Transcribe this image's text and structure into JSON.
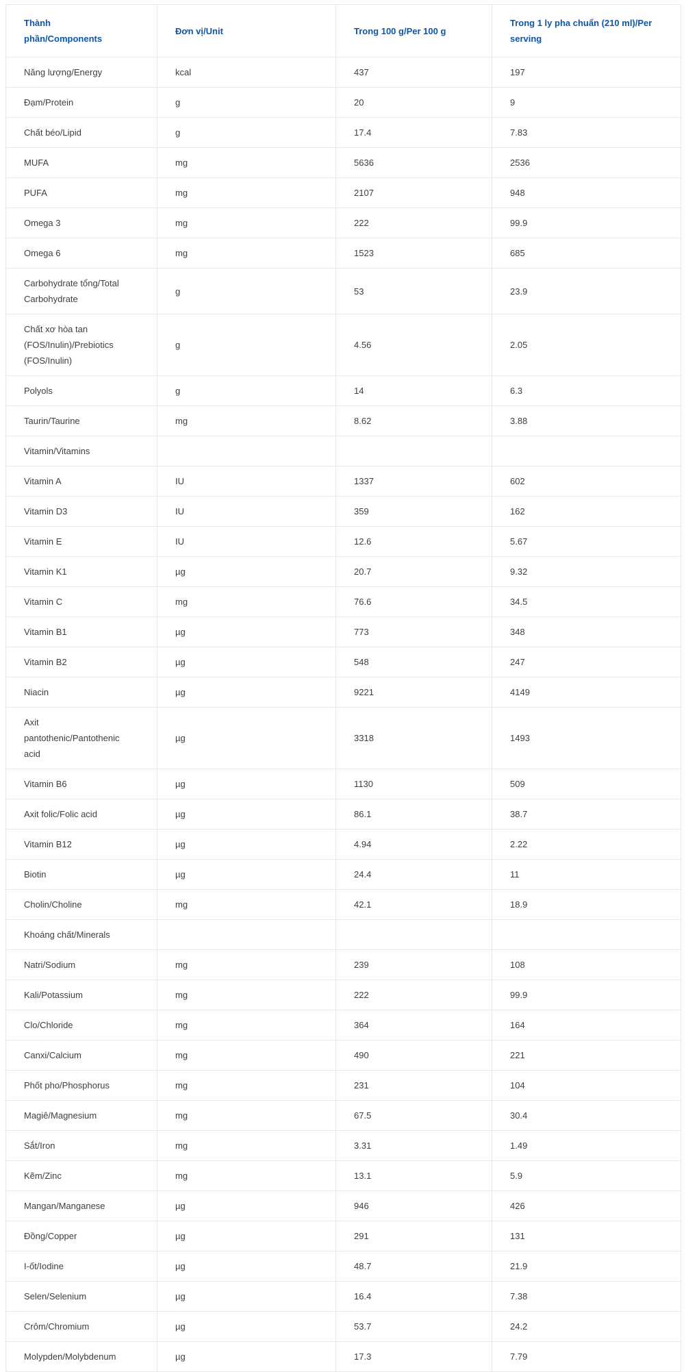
{
  "colors": {
    "header_text": "#0d57a8",
    "body_text": "#3e3e3e",
    "border": "#e7e7e7"
  },
  "table": {
    "headers": [
      "Thành phần/Components",
      "Đơn vị/Unit",
      "Trong 100 g/Per 100 g",
      "Trong 1 ly pha chuẩn (210 ml)/Per serving"
    ],
    "rows": [
      {
        "label": "Năng lượng/Energy",
        "unit": "kcal",
        "per100g": "437",
        "serving": "197"
      },
      {
        "label": "Đạm/Protein",
        "unit": "g",
        "per100g": "20",
        "serving": "9"
      },
      {
        "label": "Chất béo/Lipid",
        "unit": "g",
        "per100g": "17.4",
        "serving": "7.83"
      },
      {
        "label": "MUFA",
        "unit": "mg",
        "per100g": "5636",
        "serving": "2536"
      },
      {
        "label": "PUFA",
        "unit": "mg",
        "per100g": "2107",
        "serving": "948"
      },
      {
        "label": "Omega 3",
        "unit": "mg",
        "per100g": "222",
        "serving": "99.9"
      },
      {
        "label": "Omega 6",
        "unit": "mg",
        "per100g": "1523",
        "serving": "685"
      },
      {
        "label": "Carbohydrate tổng/Total Carbohydrate",
        "unit": "g",
        "per100g": "53",
        "serving": "23.9"
      },
      {
        "label": "Chất xơ hòa tan (FOS/Inulin)/Prebiotics (FOS/Inulin)",
        "unit": "g",
        "per100g": "4.56",
        "serving": "2.05"
      },
      {
        "label": "Polyols",
        "unit": "g",
        "per100g": "14",
        "serving": "6.3"
      },
      {
        "label": "Taurin/Taurine",
        "unit": "mg",
        "per100g": "8.62",
        "serving": "3.88"
      },
      {
        "label": "Vitamin/Vitamins",
        "unit": "",
        "per100g": "",
        "serving": ""
      },
      {
        "label": "Vitamin A",
        "unit": "IU",
        "per100g": "1337",
        "serving": "602"
      },
      {
        "label": "Vitamin D3",
        "unit": "IU",
        "per100g": "359",
        "serving": "162"
      },
      {
        "label": "Vitamin E",
        "unit": "IU",
        "per100g": "12.6",
        "serving": "5.67"
      },
      {
        "label": "Vitamin K1",
        "unit": "µg",
        "per100g": "20.7",
        "serving": "9.32"
      },
      {
        "label": "Vitamin C",
        "unit": "mg",
        "per100g": "76.6",
        "serving": "34.5"
      },
      {
        "label": "Vitamin B1",
        "unit": "µg",
        "per100g": "773",
        "serving": "348"
      },
      {
        "label": "Vitamin B2",
        "unit": "µg",
        "per100g": "548",
        "serving": "247"
      },
      {
        "label": "Niacin",
        "unit": "µg",
        "per100g": "9221",
        "serving": "4149"
      },
      {
        "label": "Axit pantothenic/Pantothenic acid",
        "unit": "µg",
        "per100g": "3318",
        "serving": "1493"
      },
      {
        "label": "Vitamin B6",
        "unit": "µg",
        "per100g": "1130",
        "serving": "509"
      },
      {
        "label": "Axit folic/Folic acid",
        "unit": "µg",
        "per100g": "86.1",
        "serving": "38.7"
      },
      {
        "label": "Vitamin B12",
        "unit": "µg",
        "per100g": "4.94",
        "serving": "2.22"
      },
      {
        "label": "Biotin",
        "unit": "µg",
        "per100g": "24.4",
        "serving": "11"
      },
      {
        "label": "Cholin/Choline",
        "unit": "mg",
        "per100g": "42.1",
        "serving": "18.9"
      },
      {
        "label": "Khoáng chất/Minerals",
        "unit": "",
        "per100g": "",
        "serving": ""
      },
      {
        "label": "Natri/Sodium",
        "unit": "mg",
        "per100g": "239",
        "serving": "108"
      },
      {
        "label": "Kali/Potassium",
        "unit": "mg",
        "per100g": "222",
        "serving": "99.9"
      },
      {
        "label": "Clo/Chloride",
        "unit": "mg",
        "per100g": "364",
        "serving": "164"
      },
      {
        "label": "Canxi/Calcium",
        "unit": "mg",
        "per100g": "490",
        "serving": "221"
      },
      {
        "label": "Phốt pho/Phosphorus",
        "unit": "mg",
        "per100g": "231",
        "serving": "104"
      },
      {
        "label": "Magiê/Magnesium",
        "unit": "mg",
        "per100g": "67.5",
        "serving": "30.4"
      },
      {
        "label": "Sắt/Iron",
        "unit": "mg",
        "per100g": "3.31",
        "serving": "1.49"
      },
      {
        "label": "Kẽm/Zinc",
        "unit": "mg",
        "per100g": "13.1",
        "serving": "5.9"
      },
      {
        "label": "Mangan/Manganese",
        "unit": "µg",
        "per100g": "946",
        "serving": "426"
      },
      {
        "label": "Đồng/Copper",
        "unit": "µg",
        "per100g": "291",
        "serving": "131"
      },
      {
        "label": "I-ốt/Iodine",
        "unit": "µg",
        "per100g": "48.7",
        "serving": "21.9"
      },
      {
        "label": "Selen/Selenium",
        "unit": "µg",
        "per100g": "16.4",
        "serving": "7.38"
      },
      {
        "label": "Crôm/Chromium",
        "unit": "µg",
        "per100g": "53.7",
        "serving": "24.2"
      },
      {
        "label": "Molypden/Molybdenum",
        "unit": "µg",
        "per100g": "17.3",
        "serving": "7.79"
      }
    ]
  }
}
